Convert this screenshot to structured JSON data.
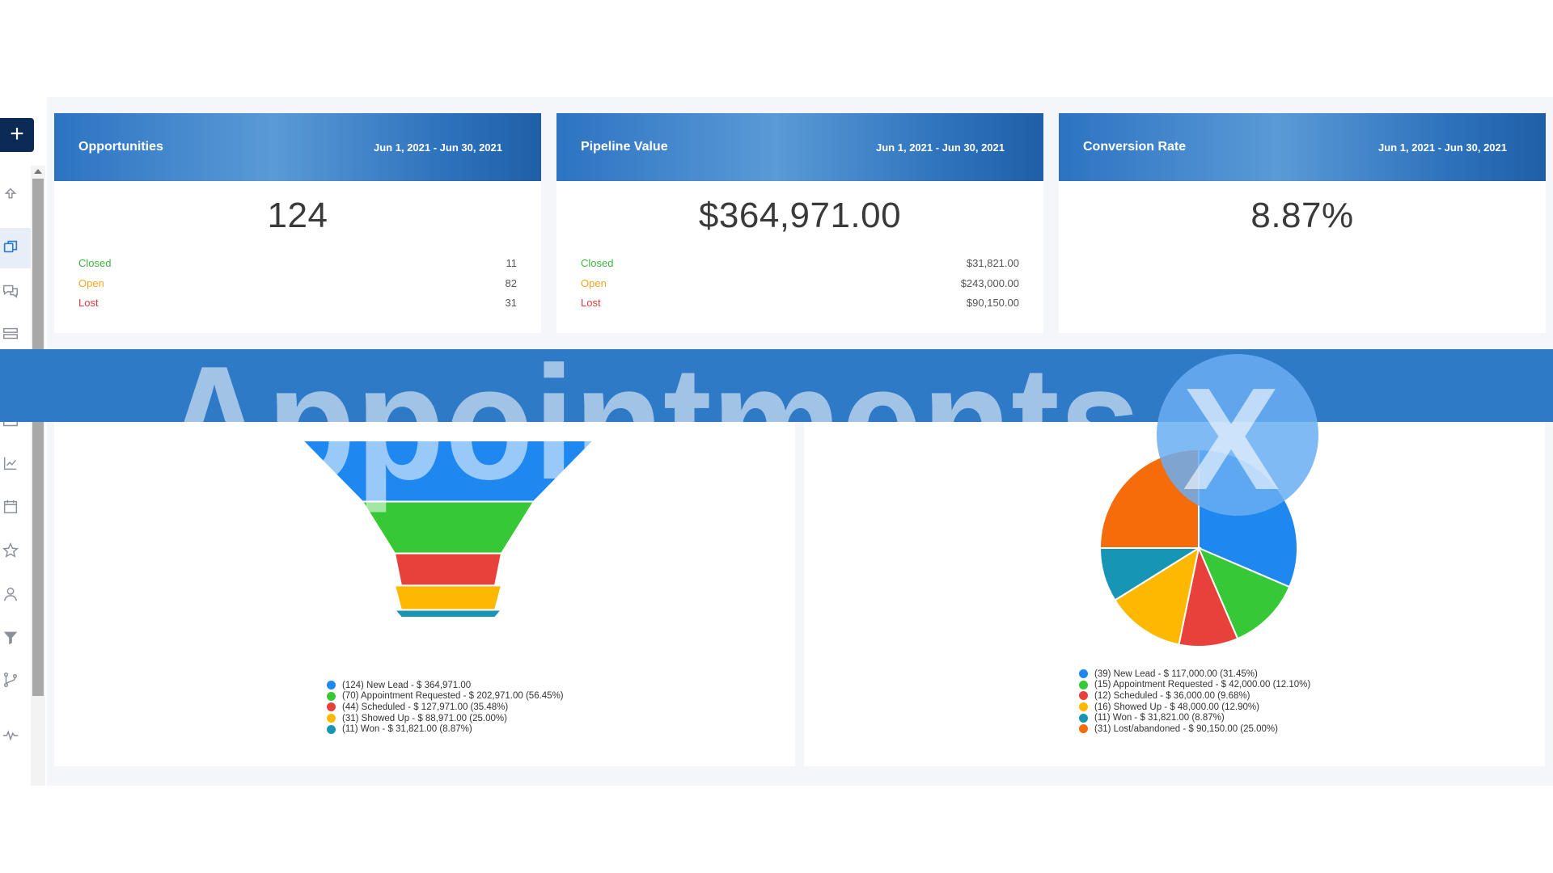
{
  "sidebar": {
    "add_label": "+",
    "icons": [
      "upload-icon",
      "copy-icon",
      "chat-icon",
      "list-icon",
      "inbox-icon",
      "chart-icon",
      "calendar-icon",
      "star-icon",
      "user-icon",
      "filter-icon",
      "branch-icon",
      "pulse-icon"
    ]
  },
  "cards": [
    {
      "title": "Opportunities",
      "date": "Jun 1, 2021 - Jun 30, 2021",
      "value": "124",
      "rows": [
        {
          "label": "Closed",
          "value": "11"
        },
        {
          "label": "Open",
          "value": "82"
        },
        {
          "label": "Lost",
          "value": "31"
        }
      ]
    },
    {
      "title": "Pipeline Value",
      "date": "Jun 1, 2021 - Jun 30, 2021",
      "value": "$364,971.00",
      "rows": [
        {
          "label": "Closed",
          "value": "$31,821.00"
        },
        {
          "label": "Open",
          "value": "$243,000.00"
        },
        {
          "label": "Lost",
          "value": "$90,150.00"
        }
      ]
    },
    {
      "title": "Conversion Rate",
      "date": "Jun 1, 2021 - Jun 30, 2021",
      "value": "8.87%"
    }
  ],
  "watermark": {
    "text": "Appointments",
    "mark": "X"
  },
  "chart_data": [
    {
      "type": "funnel",
      "categories": [
        "New Lead",
        "Appointment Requested",
        "Scheduled",
        "Showed Up",
        "Won"
      ],
      "counts": [
        124,
        70,
        44,
        31,
        11
      ],
      "values": [
        364971.0,
        202971.0,
        127971.0,
        88971.0,
        31821.0
      ],
      "percents": [
        null,
        56.45,
        35.48,
        25.0,
        8.87
      ],
      "colors": [
        "#1e88f0",
        "#37c837",
        "#e8403a",
        "#ffb800",
        "#1696b4"
      ],
      "legend": [
        "(124) New Lead - $ 364,971.00",
        "(70) Appointment Requested - $ 202,971.00 (56.45%)",
        "(44) Scheduled - $ 127,971.00 (35.48%)",
        "(31) Showed Up - $ 88,971.00 (25.00%)",
        "(11) Won - $ 31,821.00 (8.87%)"
      ]
    },
    {
      "type": "pie",
      "categories": [
        "New Lead",
        "Appointment Requested",
        "Scheduled",
        "Showed Up",
        "Won",
        "Lost/abandoned"
      ],
      "counts": [
        39,
        15,
        12,
        16,
        11,
        31
      ],
      "values": [
        117000.0,
        42000.0,
        36000.0,
        48000.0,
        31821.0,
        90150.0
      ],
      "percents": [
        31.45,
        12.1,
        9.68,
        12.9,
        8.87,
        25.0
      ],
      "colors": [
        "#1e88f0",
        "#37c837",
        "#e8403a",
        "#ffb800",
        "#1696b4",
        "#f56c0a"
      ],
      "legend": [
        "(39) New Lead - $ 117,000.00 (31.45%)",
        "(15) Appointment Requested - $ 42,000.00 (12.10%)",
        "(12) Scheduled - $ 36,000.00 (9.68%)",
        "(16) Showed Up - $ 48,000.00 (12.90%)",
        "(11) Won - $ 31,821.00 (8.87%)",
        "(31) Lost/abandoned - $ 90,150.00 (25.00%)"
      ]
    }
  ]
}
